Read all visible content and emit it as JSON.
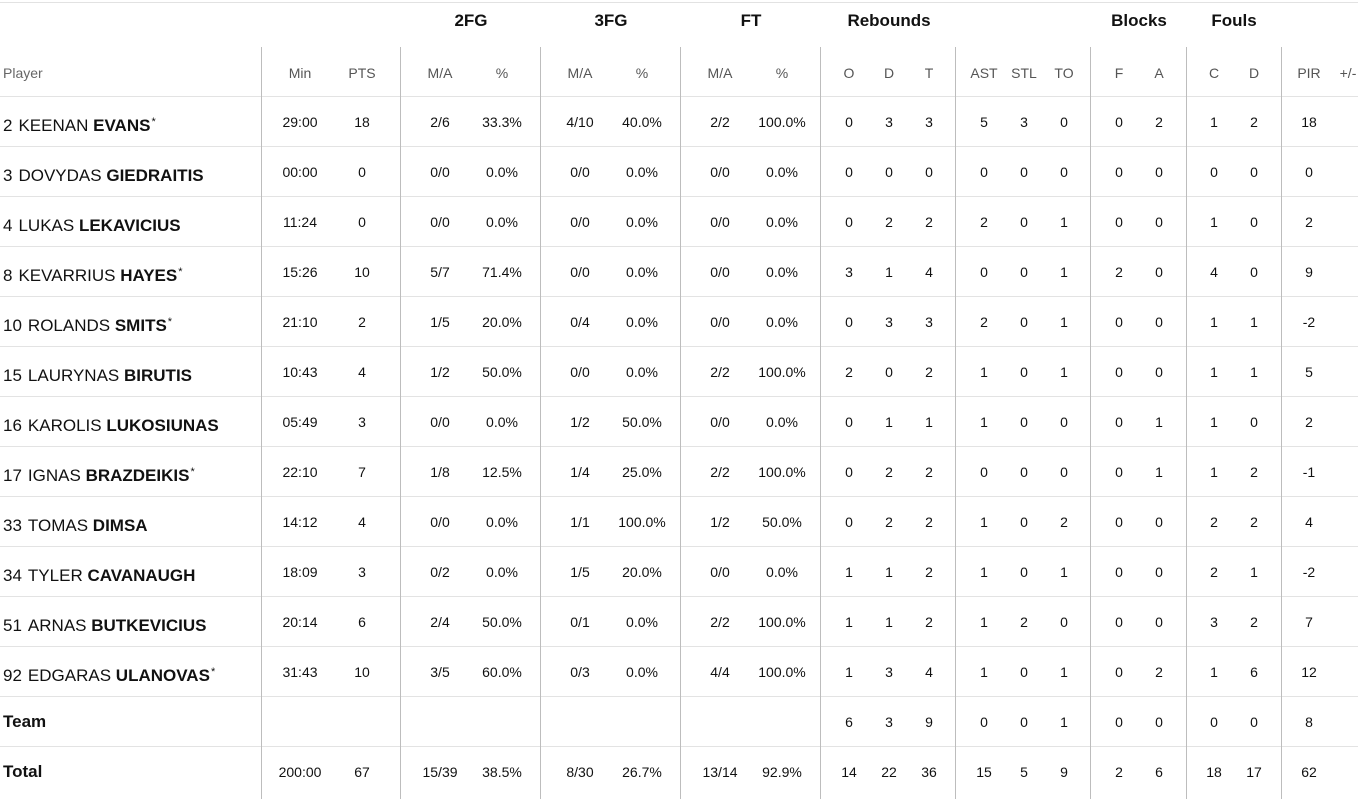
{
  "groups": {
    "fg2": "2FG",
    "fg3": "3FG",
    "ft": "FT",
    "rebounds": "Rebounds",
    "blocks": "Blocks",
    "fouls": "Fouls"
  },
  "columns": {
    "player": "Player",
    "min": "Min",
    "pts": "PTS",
    "fg2_ma": "M/A",
    "fg2_pct": "%",
    "fg3_ma": "M/A",
    "fg3_pct": "%",
    "ft_ma": "M/A",
    "ft_pct": "%",
    "reb_o": "O",
    "reb_d": "D",
    "reb_t": "T",
    "ast": "AST",
    "stl": "STL",
    "to": "TO",
    "blk_f": "F",
    "blk_a": "A",
    "foul_c": "C",
    "foul_d": "D",
    "pir": "PIR",
    "pm": "+/-"
  },
  "players": [
    {
      "num": "2",
      "first": "KEENAN",
      "last": "EVANS",
      "star": "*",
      "min": "29:00",
      "pts": "18",
      "fg2_ma": "2/6",
      "fg2_pct": "33.3%",
      "fg3_ma": "4/10",
      "fg3_pct": "40.0%",
      "ft_ma": "2/2",
      "ft_pct": "100.0%",
      "reb_o": "0",
      "reb_d": "3",
      "reb_t": "3",
      "ast": "5",
      "stl": "3",
      "to": "0",
      "blk_f": "0",
      "blk_a": "2",
      "foul_c": "1",
      "foul_d": "2",
      "pir": "18"
    },
    {
      "num": "3",
      "first": "DOVYDAS",
      "last": "GIEDRAITIS",
      "star": "",
      "min": "00:00",
      "pts": "0",
      "fg2_ma": "0/0",
      "fg2_pct": "0.0%",
      "fg3_ma": "0/0",
      "fg3_pct": "0.0%",
      "ft_ma": "0/0",
      "ft_pct": "0.0%",
      "reb_o": "0",
      "reb_d": "0",
      "reb_t": "0",
      "ast": "0",
      "stl": "0",
      "to": "0",
      "blk_f": "0",
      "blk_a": "0",
      "foul_c": "0",
      "foul_d": "0",
      "pir": "0"
    },
    {
      "num": "4",
      "first": "LUKAS",
      "last": "LEKAVICIUS",
      "star": "",
      "min": "11:24",
      "pts": "0",
      "fg2_ma": "0/0",
      "fg2_pct": "0.0%",
      "fg3_ma": "0/0",
      "fg3_pct": "0.0%",
      "ft_ma": "0/0",
      "ft_pct": "0.0%",
      "reb_o": "0",
      "reb_d": "2",
      "reb_t": "2",
      "ast": "2",
      "stl": "0",
      "to": "1",
      "blk_f": "0",
      "blk_a": "0",
      "foul_c": "1",
      "foul_d": "0",
      "pir": "2"
    },
    {
      "num": "8",
      "first": "KEVARRIUS",
      "last": "HAYES",
      "star": "*",
      "min": "15:26",
      "pts": "10",
      "fg2_ma": "5/7",
      "fg2_pct": "71.4%",
      "fg3_ma": "0/0",
      "fg3_pct": "0.0%",
      "ft_ma": "0/0",
      "ft_pct": "0.0%",
      "reb_o": "3",
      "reb_d": "1",
      "reb_t": "4",
      "ast": "0",
      "stl": "0",
      "to": "1",
      "blk_f": "2",
      "blk_a": "0",
      "foul_c": "4",
      "foul_d": "0",
      "pir": "9"
    },
    {
      "num": "10",
      "first": "ROLANDS",
      "last": "SMITS",
      "star": "*",
      "min": "21:10",
      "pts": "2",
      "fg2_ma": "1/5",
      "fg2_pct": "20.0%",
      "fg3_ma": "0/4",
      "fg3_pct": "0.0%",
      "ft_ma": "0/0",
      "ft_pct": "0.0%",
      "reb_o": "0",
      "reb_d": "3",
      "reb_t": "3",
      "ast": "2",
      "stl": "0",
      "to": "1",
      "blk_f": "0",
      "blk_a": "0",
      "foul_c": "1",
      "foul_d": "1",
      "pir": "-2"
    },
    {
      "num": "15",
      "first": "LAURYNAS",
      "last": "BIRUTIS",
      "star": "",
      "min": "10:43",
      "pts": "4",
      "fg2_ma": "1/2",
      "fg2_pct": "50.0%",
      "fg3_ma": "0/0",
      "fg3_pct": "0.0%",
      "ft_ma": "2/2",
      "ft_pct": "100.0%",
      "reb_o": "2",
      "reb_d": "0",
      "reb_t": "2",
      "ast": "1",
      "stl": "0",
      "to": "1",
      "blk_f": "0",
      "blk_a": "0",
      "foul_c": "1",
      "foul_d": "1",
      "pir": "5"
    },
    {
      "num": "16",
      "first": "KAROLIS",
      "last": "LUKOSIUNAS",
      "star": "",
      "min": "05:49",
      "pts": "3",
      "fg2_ma": "0/0",
      "fg2_pct": "0.0%",
      "fg3_ma": "1/2",
      "fg3_pct": "50.0%",
      "ft_ma": "0/0",
      "ft_pct": "0.0%",
      "reb_o": "0",
      "reb_d": "1",
      "reb_t": "1",
      "ast": "1",
      "stl": "0",
      "to": "0",
      "blk_f": "0",
      "blk_a": "1",
      "foul_c": "1",
      "foul_d": "0",
      "pir": "2"
    },
    {
      "num": "17",
      "first": "IGNAS",
      "last": "BRAZDEIKIS",
      "star": "*",
      "min": "22:10",
      "pts": "7",
      "fg2_ma": "1/8",
      "fg2_pct": "12.5%",
      "fg3_ma": "1/4",
      "fg3_pct": "25.0%",
      "ft_ma": "2/2",
      "ft_pct": "100.0%",
      "reb_o": "0",
      "reb_d": "2",
      "reb_t": "2",
      "ast": "0",
      "stl": "0",
      "to": "0",
      "blk_f": "0",
      "blk_a": "1",
      "foul_c": "1",
      "foul_d": "2",
      "pir": "-1"
    },
    {
      "num": "33",
      "first": "TOMAS",
      "last": "DIMSA",
      "star": "",
      "min": "14:12",
      "pts": "4",
      "fg2_ma": "0/0",
      "fg2_pct": "0.0%",
      "fg3_ma": "1/1",
      "fg3_pct": "100.0%",
      "ft_ma": "1/2",
      "ft_pct": "50.0%",
      "reb_o": "0",
      "reb_d": "2",
      "reb_t": "2",
      "ast": "1",
      "stl": "0",
      "to": "2",
      "blk_f": "0",
      "blk_a": "0",
      "foul_c": "2",
      "foul_d": "2",
      "pir": "4"
    },
    {
      "num": "34",
      "first": "TYLER",
      "last": "CAVANAUGH",
      "star": "",
      "min": "18:09",
      "pts": "3",
      "fg2_ma": "0/2",
      "fg2_pct": "0.0%",
      "fg3_ma": "1/5",
      "fg3_pct": "20.0%",
      "ft_ma": "0/0",
      "ft_pct": "0.0%",
      "reb_o": "1",
      "reb_d": "1",
      "reb_t": "2",
      "ast": "1",
      "stl": "0",
      "to": "1",
      "blk_f": "0",
      "blk_a": "0",
      "foul_c": "2",
      "foul_d": "1",
      "pir": "-2"
    },
    {
      "num": "51",
      "first": "ARNAS",
      "last": "BUTKEVICIUS",
      "star": "",
      "min": "20:14",
      "pts": "6",
      "fg2_ma": "2/4",
      "fg2_pct": "50.0%",
      "fg3_ma": "0/1",
      "fg3_pct": "0.0%",
      "ft_ma": "2/2",
      "ft_pct": "100.0%",
      "reb_o": "1",
      "reb_d": "1",
      "reb_t": "2",
      "ast": "1",
      "stl": "2",
      "to": "0",
      "blk_f": "0",
      "blk_a": "0",
      "foul_c": "3",
      "foul_d": "2",
      "pir": "7"
    },
    {
      "num": "92",
      "first": "EDGARAS",
      "last": "ULANOVAS",
      "star": "*",
      "min": "31:43",
      "pts": "10",
      "fg2_ma": "3/5",
      "fg2_pct": "60.0%",
      "fg3_ma": "0/3",
      "fg3_pct": "0.0%",
      "ft_ma": "4/4",
      "ft_pct": "100.0%",
      "reb_o": "1",
      "reb_d": "3",
      "reb_t": "4",
      "ast": "1",
      "stl": "0",
      "to": "1",
      "blk_f": "0",
      "blk_a": "2",
      "foul_c": "1",
      "foul_d": "6",
      "pir": "12"
    }
  ],
  "team": {
    "label": "Team",
    "reb_o": "6",
    "reb_d": "3",
    "reb_t": "9",
    "ast": "0",
    "stl": "0",
    "to": "1",
    "blk_f": "0",
    "blk_a": "0",
    "foul_c": "0",
    "foul_d": "0",
    "pir": "8"
  },
  "total": {
    "label": "Total",
    "min": "200:00",
    "pts": "67",
    "fg2_ma": "15/39",
    "fg2_pct": "38.5%",
    "fg3_ma": "8/30",
    "fg3_pct": "26.7%",
    "ft_ma": "13/14",
    "ft_pct": "92.9%",
    "reb_o": "14",
    "reb_d": "22",
    "reb_t": "36",
    "ast": "15",
    "stl": "5",
    "to": "9",
    "blk_f": "2",
    "blk_a": "6",
    "foul_c": "18",
    "foul_d": "17",
    "pir": "62"
  }
}
